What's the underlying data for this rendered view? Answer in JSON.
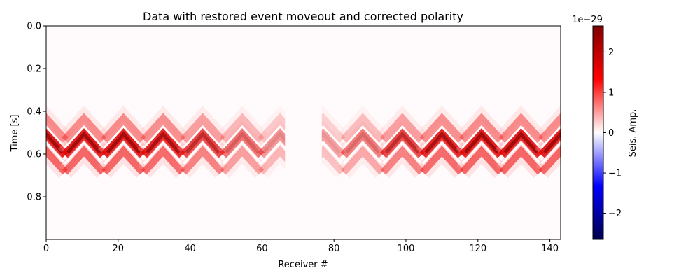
{
  "chart_data": {
    "type": "heatmap",
    "title": "Data with restored event moveout and corrected polarity",
    "xlabel": "Receiver #",
    "ylabel": "Time [s]",
    "xlim": [
      0,
      143
    ],
    "ylim": [
      1.0,
      0.0
    ],
    "xticks": [
      "0",
      "20",
      "40",
      "60",
      "80",
      "100",
      "120",
      "140"
    ],
    "xtick_values": [
      0,
      20,
      40,
      60,
      80,
      100,
      120,
      140
    ],
    "yticks": [
      "0.0",
      "0.2",
      "0.4",
      "0.6",
      "0.8"
    ],
    "ytick_values": [
      0.0,
      0.2,
      0.4,
      0.6,
      0.8
    ],
    "gap_receivers": [
      66,
      77
    ],
    "event_centers_receiver": [
      0,
      10.5,
      21.5,
      32.5,
      43.5,
      54.5,
      65,
      77,
      88,
      99,
      110,
      121,
      132,
      143
    ],
    "event_peak_amplitude_relative": [
      0.95,
      0.95,
      0.95,
      0.9,
      0.75,
      0.55,
      0.4,
      0.35,
      0.5,
      0.75,
      0.9,
      0.95,
      0.95,
      0.95
    ],
    "event_apex_time_s": 0.43,
    "event_wavelet_times_s": [
      0.45,
      0.52,
      0.6
    ],
    "grid": false,
    "colorbar": {
      "label": "Seis. Amp.",
      "scale_label": "1e−29",
      "ticks": [
        "−2",
        "−1",
        "0",
        "1",
        "2"
      ],
      "tick_values": [
        -2,
        -1,
        0,
        1,
        2
      ],
      "range": [
        -2.65,
        2.65
      ],
      "colormap": "seismic",
      "colors": [
        "#00004c",
        "#0000ff",
        "#ffffff",
        "#ff0000",
        "#7f0000"
      ]
    }
  }
}
